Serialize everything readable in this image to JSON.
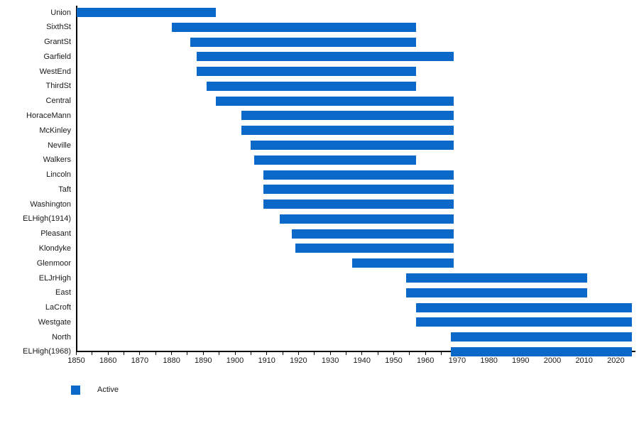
{
  "chart_data": {
    "type": "bar",
    "subtype": "horizontal-range-timeline",
    "title": "",
    "xlabel": "",
    "ylabel": "",
    "xlim": [
      1850,
      2026
    ],
    "x_major_ticks": [
      1850,
      1860,
      1870,
      1880,
      1890,
      1900,
      1910,
      1920,
      1930,
      1940,
      1950,
      1960,
      1970,
      1980,
      1990,
      2000,
      2010,
      2020
    ],
    "x_minor_tick_step": 5,
    "grid": false,
    "legend_position": "bottom-left",
    "legend": {
      "label": "Active",
      "color": "#0a69c8"
    },
    "bar_color": "#0a69c8",
    "axis_color": "#000000",
    "rows": [
      {
        "label": "Union",
        "start": 1850,
        "end": 1894
      },
      {
        "label": "SixthSt",
        "start": 1880,
        "end": 1957
      },
      {
        "label": "GrantSt",
        "start": 1886,
        "end": 1957
      },
      {
        "label": "Garfield",
        "start": 1888,
        "end": 1969
      },
      {
        "label": "WestEnd",
        "start": 1888,
        "end": 1957
      },
      {
        "label": "ThirdSt",
        "start": 1891,
        "end": 1957
      },
      {
        "label": "Central",
        "start": 1894,
        "end": 1969
      },
      {
        "label": "HoraceMann",
        "start": 1902,
        "end": 1969
      },
      {
        "label": "McKinley",
        "start": 1902,
        "end": 1969
      },
      {
        "label": "Neville",
        "start": 1905,
        "end": 1969
      },
      {
        "label": "Walkers",
        "start": 1906,
        "end": 1957
      },
      {
        "label": "Lincoln",
        "start": 1909,
        "end": 1969
      },
      {
        "label": "Taft",
        "start": 1909,
        "end": 1969
      },
      {
        "label": "Washington",
        "start": 1909,
        "end": 1969
      },
      {
        "label": "ELHigh(1914)",
        "start": 1914,
        "end": 1969
      },
      {
        "label": "Pleasant",
        "start": 1918,
        "end": 1969
      },
      {
        "label": "Klondyke",
        "start": 1919,
        "end": 1969
      },
      {
        "label": "Glenmoor",
        "start": 1937,
        "end": 1969
      },
      {
        "label": "ELJrHigh",
        "start": 1954,
        "end": 2011
      },
      {
        "label": "East",
        "start": 1954,
        "end": 2011
      },
      {
        "label": "LaCroft",
        "start": 1957,
        "end": 2025
      },
      {
        "label": "Westgate",
        "start": 1957,
        "end": 2025
      },
      {
        "label": "North",
        "start": 1968,
        "end": 2025
      },
      {
        "label": "ELHigh(1968)",
        "start": 1968,
        "end": 2025
      }
    ]
  }
}
